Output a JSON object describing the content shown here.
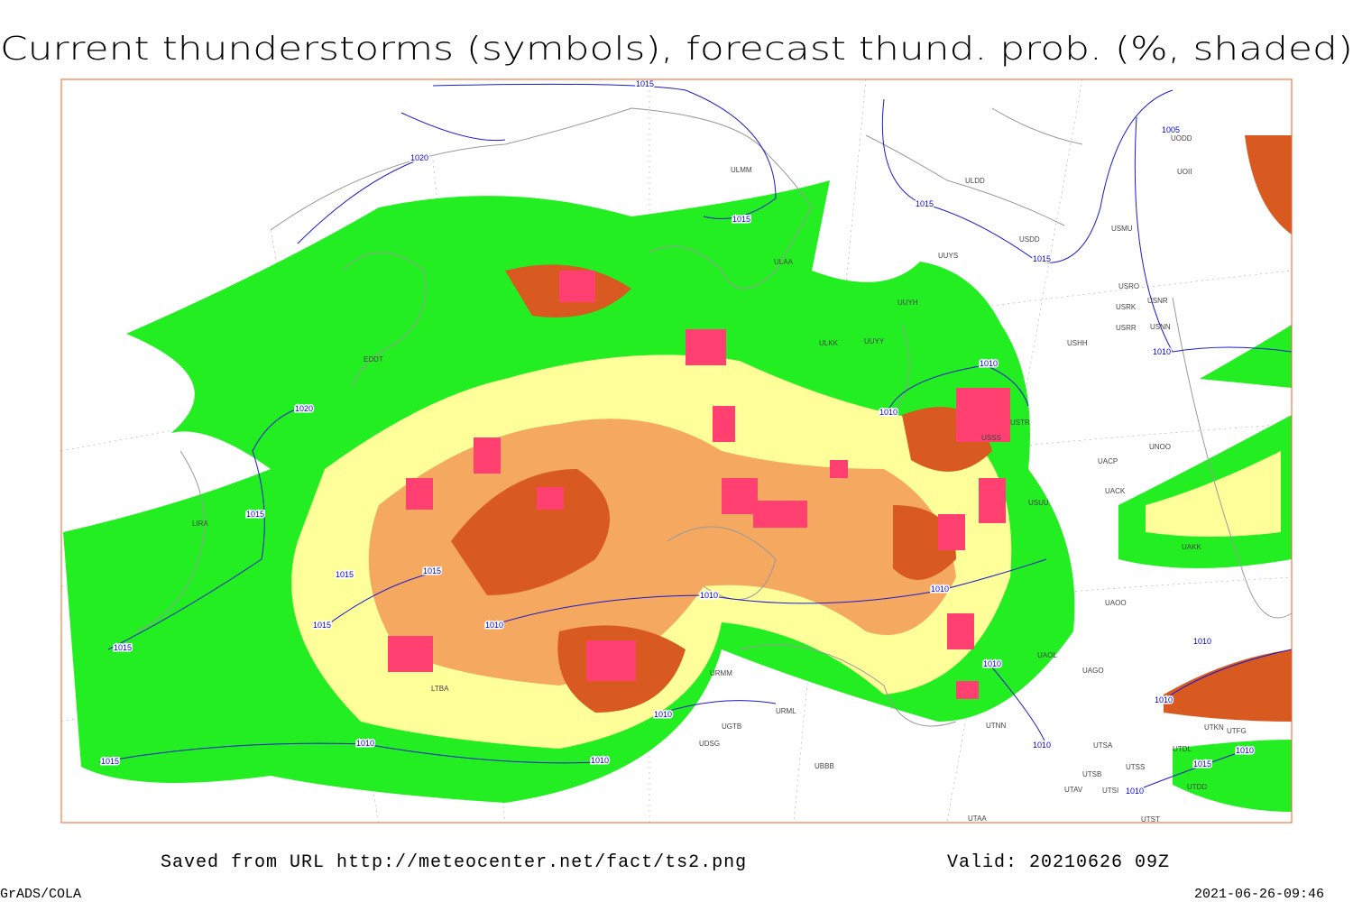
{
  "header": {
    "title": "Current thunderstorms (symbols), forecast thund. prob. (%, shaded)"
  },
  "footer": {
    "source": "Saved from URL http://meteocenter.net/fact/ts2.png",
    "valid": "Valid: 20210626 09Z",
    "software": "GrADS/COLA",
    "timestamp": "2021-06-26-09:46"
  },
  "isobar_labels": [
    1015,
    1020,
    1015,
    1015,
    1015,
    1005,
    1010,
    1010,
    1010,
    1020,
    1015,
    1015,
    1015,
    1015,
    1015,
    1010,
    1010,
    1010,
    1010,
    1010,
    1010,
    1010,
    1010,
    1015,
    1010,
    1010,
    1010,
    1015,
    1010
  ],
  "stations": [
    "ULMM",
    "ULDD",
    "USDD",
    "USMU",
    "UUYS",
    "ULAA",
    "USRO",
    "USRK",
    "USNR",
    "UUYH",
    "USRR",
    "USNN",
    "ULKK",
    "UUYY",
    "USHH",
    "UODD",
    "UOII",
    "UNOO",
    "UACP",
    "UACK",
    "UAKK",
    "UAOO",
    "UAOL",
    "UAGO",
    "UTNN",
    "UTSA",
    "UTSB",
    "UTSS",
    "UTAV",
    "UTSI",
    "UTAA",
    "UTST",
    "URML",
    "UBBB",
    "URMM",
    "UDSG",
    "UGTB",
    "LTBA",
    "LIRA",
    "EDDT",
    "USSS",
    "USTR",
    "USUU",
    "UTDL",
    "UTKN",
    "UTFG",
    "UTDD"
  ]
}
